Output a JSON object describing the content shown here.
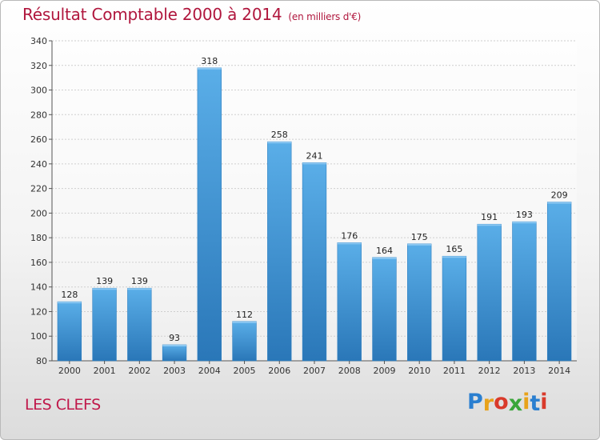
{
  "header": {
    "title": "Résultat Comptable 2000 à 2014",
    "subtitle": "(en milliers d'€)"
  },
  "footer": {
    "commune": "LES CLEFS",
    "logo_letters": [
      "P",
      "r",
      "o",
      "x",
      "i",
      "t",
      "i"
    ],
    "logo_colors": [
      "#2a7fd0",
      "#e8a21a",
      "#d93a2b",
      "#3aa63a",
      "#e8a21a",
      "#2a7fd0",
      "#d93a2b"
    ]
  },
  "chart_data": {
    "type": "bar",
    "categories": [
      "2000",
      "2001",
      "2002",
      "2003",
      "2004",
      "2005",
      "2006",
      "2007",
      "2008",
      "2009",
      "2010",
      "2011",
      "2012",
      "2013",
      "2014"
    ],
    "values": [
      128,
      139,
      139,
      93,
      318,
      112,
      258,
      241,
      176,
      164,
      175,
      165,
      191,
      193,
      209
    ],
    "data_labels": [
      "128",
      "139",
      "139",
      "93",
      "318",
      "112",
      "258",
      "241",
      "176",
      "164",
      "175",
      "165",
      "191",
      "193",
      "209"
    ],
    "y_ticks": [
      "80",
      "100",
      "120",
      "140",
      "160",
      "180",
      "200",
      "220",
      "240",
      "260",
      "280",
      "300",
      "320",
      "340"
    ],
    "ylim": [
      80,
      340
    ],
    "grid": true,
    "bar_color_top": "#5aaee8",
    "bar_color_bottom": "#2a77b8",
    "grid_color": "#cfcfcf"
  }
}
